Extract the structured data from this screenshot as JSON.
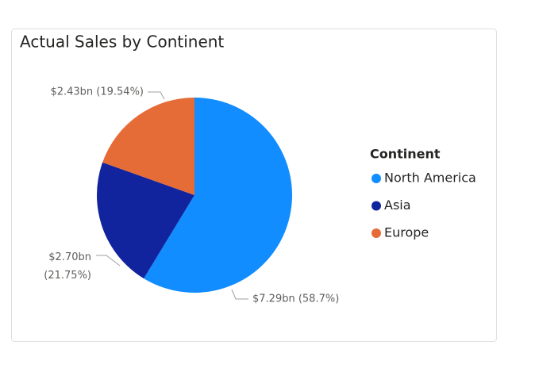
{
  "chart_data": {
    "type": "pie",
    "title": "Actual Sales by Continent",
    "legend_title": "Continent",
    "legend_position": "right",
    "categories": [
      "North America",
      "Asia",
      "Europe"
    ],
    "values": [
      7.29,
      2.7,
      2.43
    ],
    "value_labels": [
      "$7.29bn (58.7%)",
      "$2.70bn (21.75%)",
      "$2.43bn (19.54%)"
    ],
    "colors": [
      "#118dff",
      "#12239e",
      "#e66c37"
    ]
  }
}
